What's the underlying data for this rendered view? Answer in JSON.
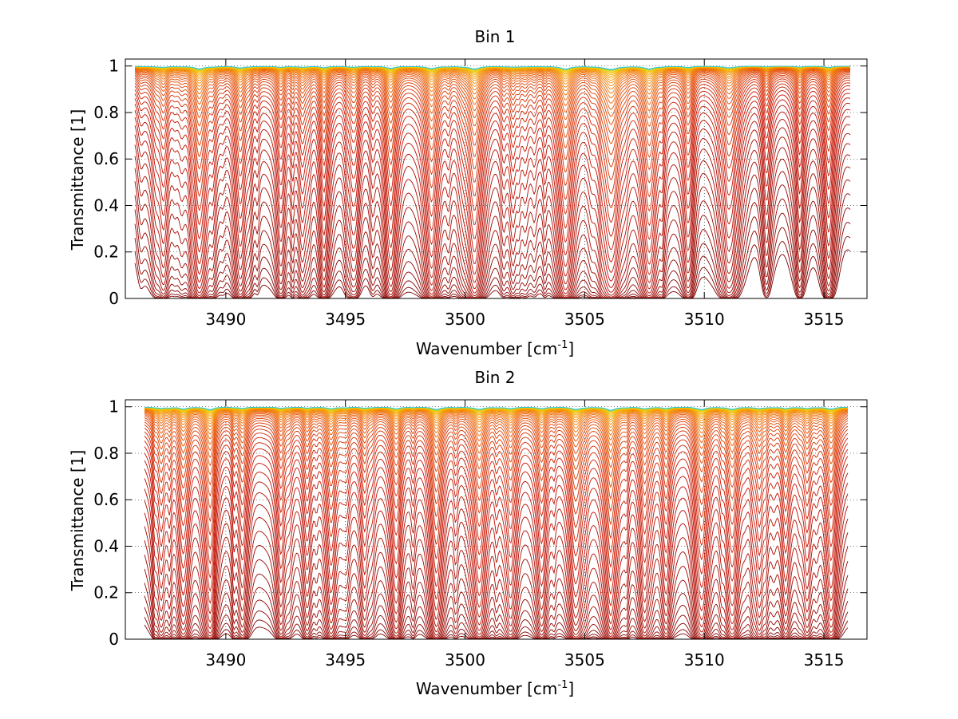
{
  "chart_data": [
    {
      "type": "line",
      "title": "Bin 1",
      "xlabel": "Wavenumber [cm",
      "xlabel_sup": "-1",
      "xlabel_end": "]",
      "ylabel": "Transmittance [1]",
      "xlim": [
        3485.8,
        3516.8
      ],
      "ylim": [
        0,
        1.03
      ],
      "xticks": [
        3490,
        3495,
        3500,
        3505,
        3510,
        3515
      ],
      "xtick_labels": [
        "3490",
        "3495",
        "3500",
        "3505",
        "3510",
        "3515"
      ],
      "yticks": [
        0,
        0.2,
        0.4,
        0.6,
        0.8,
        1
      ],
      "ytick_labels": [
        "0",
        "0.2",
        "0.4",
        "0.6",
        "0.8",
        "1"
      ],
      "grid": "dotted",
      "legend": "none",
      "series_count": 45,
      "data_x_range": [
        3486.2,
        3516.1
      ],
      "absorption_lines": [
        {
          "x": 3487.4,
          "w": 0.2,
          "d": 1.2
        },
        {
          "x": 3488.9,
          "w": 0.22,
          "d": 2.6
        },
        {
          "x": 3490.6,
          "w": 0.22,
          "d": 1.8
        },
        {
          "x": 3492.3,
          "w": 0.18,
          "d": 1.2
        },
        {
          "x": 3493.2,
          "w": 0.18,
          "d": 1.0
        },
        {
          "x": 3494.1,
          "w": 0.18,
          "d": 1.6
        },
        {
          "x": 3495.3,
          "w": 0.16,
          "d": 0.7
        },
        {
          "x": 3496.9,
          "w": 0.22,
          "d": 2.0
        },
        {
          "x": 3498.6,
          "w": 0.24,
          "d": 2.8
        },
        {
          "x": 3500.4,
          "w": 0.26,
          "d": 3.0
        },
        {
          "x": 3502.0,
          "w": 0.16,
          "d": 0.8
        },
        {
          "x": 3504.2,
          "w": 0.26,
          "d": 3.2
        },
        {
          "x": 3506.1,
          "w": 0.3,
          "d": 3.4
        },
        {
          "x": 3507.7,
          "w": 0.26,
          "d": 3.0
        },
        {
          "x": 3509.3,
          "w": 0.18,
          "d": 1.1
        },
        {
          "x": 3511.0,
          "w": 0.22,
          "d": 1.5
        },
        {
          "x": 3512.6,
          "w": 0.16,
          "d": 0.7
        },
        {
          "x": 3514.0,
          "w": 0.16,
          "d": 0.7
        },
        {
          "x": 3515.2,
          "w": 0.2,
          "d": 1.4
        }
      ],
      "continuum_scale": 1.0
    },
    {
      "type": "line",
      "title": "Bin 2",
      "xlabel": "Wavenumber [cm",
      "xlabel_sup": "-1",
      "xlabel_end": "]",
      "ylabel": "Transmittance [1]",
      "xlim": [
        3485.8,
        3516.8
      ],
      "ylim": [
        0,
        1.03
      ],
      "xticks": [
        3490,
        3495,
        3500,
        3505,
        3510,
        3515
      ],
      "xtick_labels": [
        "3490",
        "3495",
        "3500",
        "3505",
        "3510",
        "3515"
      ],
      "yticks": [
        0,
        0.2,
        0.4,
        0.6,
        0.8,
        1
      ],
      "ytick_labels": [
        "0",
        "0.2",
        "0.4",
        "0.6",
        "0.8",
        "1"
      ],
      "grid": "dotted",
      "legend": "none",
      "series_count": 45,
      "data_x_range": [
        3486.6,
        3516.0
      ],
      "absorption_lines": [
        {
          "x": 3487.3,
          "w": 0.2,
          "d": 1.0
        },
        {
          "x": 3488.2,
          "w": 0.2,
          "d": 1.6
        },
        {
          "x": 3489.3,
          "w": 0.22,
          "d": 2.2
        },
        {
          "x": 3490.7,
          "w": 0.2,
          "d": 1.6
        },
        {
          "x": 3492.3,
          "w": 0.18,
          "d": 1.4
        },
        {
          "x": 3493.4,
          "w": 0.18,
          "d": 1.2
        },
        {
          "x": 3494.4,
          "w": 0.2,
          "d": 2.0
        },
        {
          "x": 3495.8,
          "w": 0.18,
          "d": 1.2
        },
        {
          "x": 3497.1,
          "w": 0.2,
          "d": 1.8
        },
        {
          "x": 3498.8,
          "w": 0.22,
          "d": 2.8
        },
        {
          "x": 3500.6,
          "w": 0.24,
          "d": 2.6
        },
        {
          "x": 3501.9,
          "w": 0.18,
          "d": 1.6
        },
        {
          "x": 3503.2,
          "w": 0.2,
          "d": 1.8
        },
        {
          "x": 3504.6,
          "w": 0.22,
          "d": 2.4
        },
        {
          "x": 3506.1,
          "w": 0.24,
          "d": 3.2
        },
        {
          "x": 3507.5,
          "w": 0.2,
          "d": 1.8
        },
        {
          "x": 3508.4,
          "w": 0.18,
          "d": 1.6
        },
        {
          "x": 3509.9,
          "w": 0.22,
          "d": 2.6
        },
        {
          "x": 3511.2,
          "w": 0.2,
          "d": 2.0
        },
        {
          "x": 3512.3,
          "w": 0.18,
          "d": 1.6
        },
        {
          "x": 3513.4,
          "w": 0.18,
          "d": 1.6
        },
        {
          "x": 3514.3,
          "w": 0.18,
          "d": 1.4
        },
        {
          "x": 3515.3,
          "w": 0.22,
          "d": 2.4
        }
      ],
      "continuum_scale": 1.3
    }
  ]
}
